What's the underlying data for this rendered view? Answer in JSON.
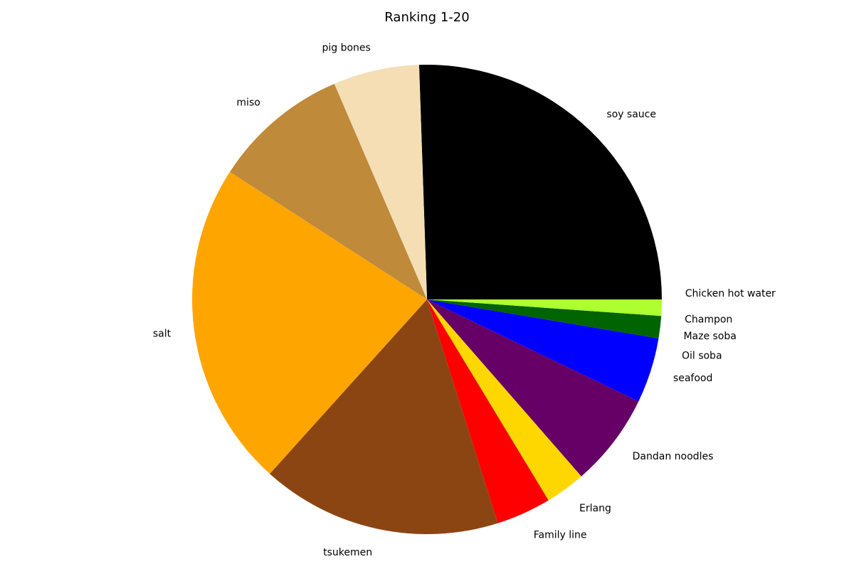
{
  "chart_data": {
    "type": "pie",
    "title": "Ranking 1-20",
    "start_angle_deg": 0,
    "direction": "clockwise",
    "slices": [
      {
        "label": "soy sauce",
        "value": 25.0,
        "color": "#000000"
      },
      {
        "label": "Chicken hot water",
        "value": 1.1,
        "color": "#adff2f"
      },
      {
        "label": "Champon",
        "value": 0.0,
        "color": "#ffffff"
      },
      {
        "label": "Maze soba",
        "value": 1.5,
        "color": "#006400"
      },
      {
        "label": "Oil soba",
        "value": 0.0,
        "color": "#ffffff"
      },
      {
        "label": "seafood",
        "value": 4.4,
        "color": "#0000ff"
      },
      {
        "label": "Dandan noodles",
        "value": 6.3,
        "color": "#660066"
      },
      {
        "label": "Erlang",
        "value": 2.7,
        "color": "#ffd700"
      },
      {
        "label": "Family line",
        "value": 3.7,
        "color": "#ff0000"
      },
      {
        "label": "tsukemen",
        "value": 16.2,
        "color": "#8b4513"
      },
      {
        "label": "salt",
        "value": 22.0,
        "color": "#ffa500"
      },
      {
        "label": "miso",
        "value": 9.2,
        "color": "#bf8a3a"
      },
      {
        "label": "pig bones",
        "value": 5.8,
        "color": "#f5deb3"
      }
    ]
  }
}
